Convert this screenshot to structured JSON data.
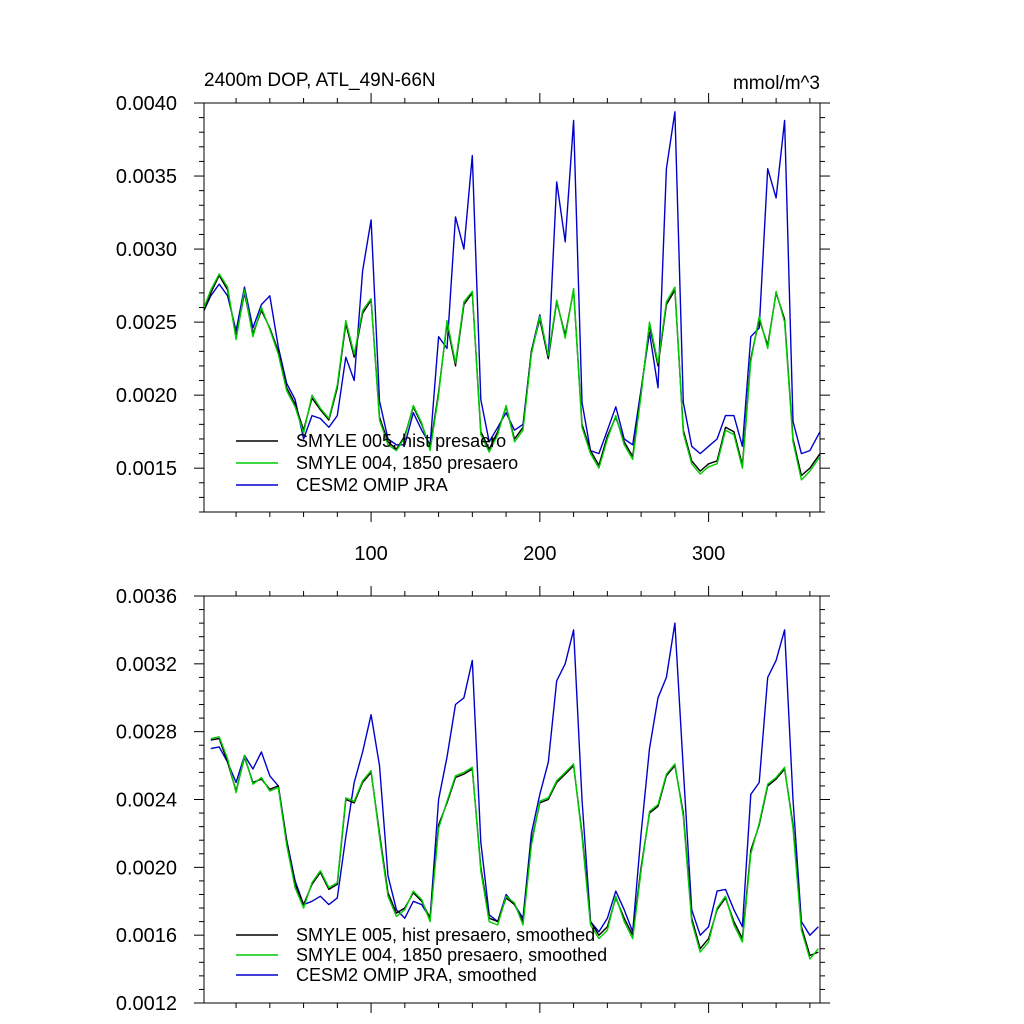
{
  "chart_data": [
    {
      "type": "line",
      "title": "2400m DOP, ATL_49N-66N",
      "units": "mmol/m^3",
      "xlim": [
        1,
        366
      ],
      "ylim": [
        0.0012,
        0.004
      ],
      "xticks": [
        100,
        200,
        300
      ],
      "xtick_labels": [
        "100",
        "200",
        "300"
      ],
      "yticks": [
        0.0015,
        0.002,
        0.0025,
        0.003,
        0.0035,
        0.004
      ],
      "ytick_labels": [
        "0.0015",
        "0.0020",
        "0.0025",
        "0.0030",
        "0.0035",
        "0.0040"
      ],
      "legend_position": "bottom-left",
      "x": [
        1,
        5,
        10,
        15,
        20,
        25,
        30,
        35,
        40,
        45,
        50,
        55,
        60,
        65,
        70,
        75,
        80,
        85,
        90,
        95,
        100,
        105,
        110,
        115,
        120,
        125,
        130,
        135,
        140,
        145,
        150,
        155,
        160,
        165,
        170,
        175,
        180,
        185,
        190,
        195,
        200,
        205,
        210,
        215,
        220,
        225,
        230,
        235,
        240,
        245,
        250,
        255,
        260,
        265,
        270,
        275,
        280,
        285,
        290,
        295,
        300,
        305,
        310,
        315,
        320,
        325,
        330,
        335,
        340,
        345,
        350,
        355,
        360,
        366
      ],
      "series": [
        {
          "name": "SMYLE 005, hist presaero",
          "color": "#000000",
          "values": [
            0.00258,
            0.0027,
            0.00282,
            0.00272,
            0.0024,
            0.0027,
            0.00242,
            0.00258,
            0.00246,
            0.0023,
            0.00205,
            0.00194,
            0.00176,
            0.00198,
            0.0019,
            0.00183,
            0.00205,
            0.00249,
            0.00226,
            0.00256,
            0.00265,
            0.00185,
            0.00168,
            0.00163,
            0.00172,
            0.00192,
            0.0018,
            0.00164,
            0.00202,
            0.00249,
            0.0022,
            0.00262,
            0.0027,
            0.00175,
            0.00163,
            0.00175,
            0.00192,
            0.0017,
            0.00178,
            0.0023,
            0.00252,
            0.00225,
            0.00264,
            0.00241,
            0.00272,
            0.0018,
            0.00162,
            0.00152,
            0.00172,
            0.00185,
            0.00168,
            0.00158,
            0.00202,
            0.00248,
            0.0022,
            0.00262,
            0.00272,
            0.00176,
            0.00155,
            0.00148,
            0.00153,
            0.00155,
            0.00178,
            0.00175,
            0.00152,
            0.00225,
            0.00252,
            0.00234,
            0.0027,
            0.00252,
            0.0017,
            0.00145,
            0.0015,
            0.0016
          ]
        },
        {
          "name": "SMYLE 004, 1850 presaero",
          "color": "#00cc00",
          "values": [
            0.0026,
            0.00272,
            0.00283,
            0.00274,
            0.00238,
            0.00272,
            0.0024,
            0.0026,
            0.00245,
            0.00228,
            0.00203,
            0.00192,
            0.00174,
            0.002,
            0.00191,
            0.00184,
            0.00207,
            0.00251,
            0.00228,
            0.00258,
            0.00266,
            0.00183,
            0.00166,
            0.00162,
            0.00171,
            0.00193,
            0.00181,
            0.00162,
            0.002,
            0.00251,
            0.00222,
            0.00264,
            0.00271,
            0.00173,
            0.00161,
            0.00173,
            0.00193,
            0.00168,
            0.00176,
            0.00228,
            0.00254,
            0.00227,
            0.00265,
            0.00239,
            0.00273,
            0.00178,
            0.0016,
            0.0015,
            0.0017,
            0.00186,
            0.00166,
            0.00156,
            0.002,
            0.0025,
            0.00222,
            0.00264,
            0.00274,
            0.00174,
            0.00153,
            0.00146,
            0.00151,
            0.00153,
            0.00176,
            0.00173,
            0.0015,
            0.00223,
            0.00254,
            0.00232,
            0.00271,
            0.0025,
            0.00168,
            0.00142,
            0.00148,
            0.00158
          ]
        },
        {
          "name": "CESM2 OMIP JRA",
          "color": "#0000cc",
          "values": [
            0.00258,
            0.00268,
            0.00276,
            0.00268,
            0.00244,
            0.00274,
            0.00246,
            0.00262,
            0.00268,
            0.00233,
            0.00208,
            0.00197,
            0.0017,
            0.00186,
            0.00184,
            0.00178,
            0.00186,
            0.00226,
            0.0021,
            0.00285,
            0.0032,
            0.00196,
            0.0017,
            0.00166,
            0.00166,
            0.00188,
            0.00176,
            0.00166,
            0.0024,
            0.00232,
            0.00322,
            0.003,
            0.00364,
            0.00197,
            0.00168,
            0.00178,
            0.00188,
            0.00176,
            0.0018,
            0.0023,
            0.00255,
            0.00225,
            0.00346,
            0.00305,
            0.00388,
            0.00195,
            0.00162,
            0.0016,
            0.00176,
            0.00192,
            0.0017,
            0.00166,
            0.00204,
            0.00243,
            0.00205,
            0.00355,
            0.00394,
            0.00195,
            0.00165,
            0.0016,
            0.00165,
            0.0017,
            0.00186,
            0.00186,
            0.00165,
            0.0024,
            0.00246,
            0.00355,
            0.00335,
            0.00388,
            0.00182,
            0.0016,
            0.00162,
            0.00175
          ]
        }
      ]
    },
    {
      "type": "line",
      "title": "",
      "xlim": [
        1,
        366
      ],
      "ylim": [
        0.0012,
        0.0036
      ],
      "xticks": [
        100,
        200,
        300
      ],
      "yticks": [
        0.0012,
        0.0016,
        0.002,
        0.0024,
        0.0028,
        0.0032,
        0.0036
      ],
      "ytick_labels": [
        "0.0012",
        "0.0016",
        "0.0020",
        "0.0024",
        "0.0028",
        "0.0032",
        "0.0036"
      ],
      "legend_position": "bottom-left",
      "x": [
        5,
        10,
        15,
        20,
        25,
        30,
        35,
        40,
        45,
        50,
        55,
        60,
        65,
        70,
        75,
        80,
        85,
        90,
        95,
        100,
        105,
        110,
        115,
        120,
        125,
        130,
        135,
        140,
        145,
        150,
        155,
        160,
        165,
        170,
        175,
        180,
        185,
        190,
        195,
        200,
        205,
        210,
        215,
        220,
        225,
        230,
        235,
        240,
        245,
        250,
        255,
        260,
        265,
        270,
        275,
        280,
        285,
        290,
        295,
        300,
        305,
        310,
        315,
        320,
        325,
        330,
        335,
        340,
        345,
        350,
        355,
        360,
        365
      ],
      "series": [
        {
          "name": "SMYLE 005, hist presaero, smoothed",
          "color": "#000000",
          "values": [
            0.00275,
            0.00276,
            0.00262,
            0.00245,
            0.00265,
            0.0025,
            0.00252,
            0.00246,
            0.00248,
            0.00215,
            0.0019,
            0.00178,
            0.0019,
            0.00197,
            0.00187,
            0.0019,
            0.0024,
            0.00238,
            0.0025,
            0.00256,
            0.0022,
            0.00185,
            0.00173,
            0.00176,
            0.00185,
            0.0018,
            0.0017,
            0.00225,
            0.00238,
            0.00253,
            0.00255,
            0.00258,
            0.002,
            0.0017,
            0.00168,
            0.00182,
            0.00178,
            0.00168,
            0.00215,
            0.00238,
            0.0024,
            0.0025,
            0.00255,
            0.0026,
            0.0022,
            0.00168,
            0.0016,
            0.00165,
            0.00182,
            0.0017,
            0.0016,
            0.002,
            0.00232,
            0.00236,
            0.00254,
            0.0026,
            0.00232,
            0.0017,
            0.00152,
            0.00158,
            0.00175,
            0.00182,
            0.00168,
            0.00158,
            0.0021,
            0.00225,
            0.00248,
            0.00252,
            0.00258,
            0.00225,
            0.00165,
            0.00148,
            0.0015
          ]
        },
        {
          "name": "SMYLE 004, 1850 presaero, smoothed",
          "color": "#00cc00",
          "values": [
            0.00276,
            0.00277,
            0.00264,
            0.00244,
            0.00266,
            0.00249,
            0.00253,
            0.00245,
            0.00247,
            0.00213,
            0.00188,
            0.00176,
            0.00191,
            0.00198,
            0.00188,
            0.00191,
            0.00241,
            0.00239,
            0.00251,
            0.00257,
            0.00218,
            0.00183,
            0.00171,
            0.00175,
            0.00186,
            0.00181,
            0.00168,
            0.00223,
            0.00239,
            0.00254,
            0.00256,
            0.00259,
            0.00198,
            0.00168,
            0.00166,
            0.00183,
            0.00179,
            0.00166,
            0.00213,
            0.00239,
            0.00241,
            0.00251,
            0.00256,
            0.00261,
            0.00218,
            0.00166,
            0.00158,
            0.00163,
            0.00183,
            0.00168,
            0.00158,
            0.00198,
            0.00233,
            0.00237,
            0.00255,
            0.00261,
            0.0023,
            0.00168,
            0.0015,
            0.00156,
            0.00176,
            0.00183,
            0.00166,
            0.00156,
            0.00208,
            0.00226,
            0.00249,
            0.00253,
            0.00259,
            0.00223,
            0.00163,
            0.00146,
            0.00152
          ]
        },
        {
          "name": "CESM2 OMIP JRA, smoothed",
          "color": "#0000cc",
          "values": [
            0.0027,
            0.00271,
            0.00262,
            0.0025,
            0.00266,
            0.00258,
            0.00268,
            0.00254,
            0.00248,
            0.00216,
            0.00192,
            0.00178,
            0.0018,
            0.00183,
            0.00178,
            0.00182,
            0.00218,
            0.0025,
            0.00268,
            0.0029,
            0.0026,
            0.00195,
            0.00175,
            0.0017,
            0.0018,
            0.00178,
            0.0017,
            0.0024,
            0.00265,
            0.00296,
            0.003,
            0.00322,
            0.00215,
            0.00172,
            0.00168,
            0.00184,
            0.00178,
            0.0017,
            0.0022,
            0.00243,
            0.00262,
            0.0031,
            0.0032,
            0.0034,
            0.0024,
            0.00168,
            0.00162,
            0.0017,
            0.00186,
            0.00175,
            0.00162,
            0.0022,
            0.0027,
            0.003,
            0.00312,
            0.00344,
            0.00258,
            0.00175,
            0.0016,
            0.00165,
            0.00186,
            0.00187,
            0.00175,
            0.00165,
            0.00243,
            0.0025,
            0.00312,
            0.00322,
            0.0034,
            0.0024,
            0.00168,
            0.0016,
            0.00165
          ]
        }
      ]
    }
  ]
}
